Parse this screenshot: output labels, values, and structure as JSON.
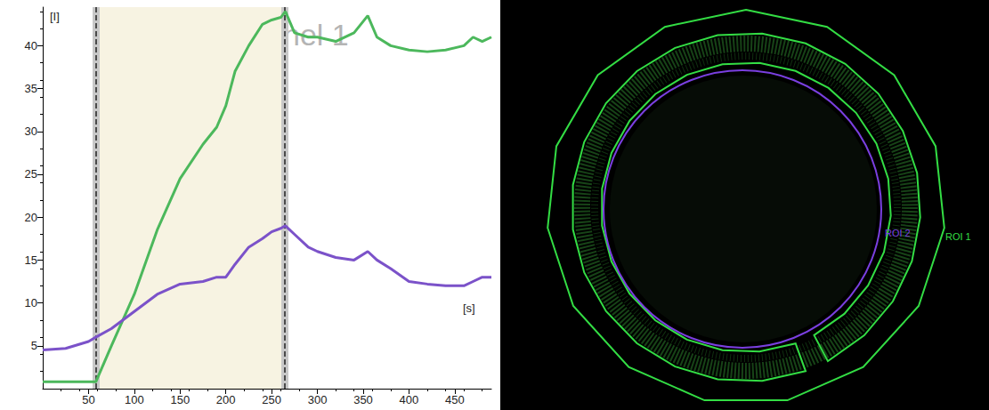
{
  "chart_data": {
    "type": "line",
    "y_label": "[I]",
    "x_label": "[s]",
    "annotations": [
      "nel 1"
    ],
    "x": [
      0,
      25,
      50,
      58,
      75,
      100,
      125,
      150,
      175,
      190,
      200,
      210,
      225,
      240,
      250,
      260,
      265,
      275,
      290,
      300,
      320,
      340,
      355,
      365,
      380,
      400,
      420,
      440,
      460,
      470,
      480,
      490
    ],
    "series": [
      {
        "color": "#4cb85c",
        "values": [
          0.8,
          0.8,
          0.8,
          0.8,
          5,
          11,
          18.5,
          24.5,
          28.5,
          30.5,
          33,
          37,
          40,
          42.5,
          43,
          43.3,
          44,
          41.5,
          41,
          41,
          40.5,
          41.5,
          43.5,
          41,
          40,
          39.5,
          39.3,
          39.5,
          40,
          41,
          40.5,
          41
        ]
      },
      {
        "color": "#7b52c9",
        "values": [
          4.5,
          4.7,
          5.5,
          6,
          7,
          9,
          11,
          12.2,
          12.5,
          13,
          13,
          14.5,
          16.5,
          17.5,
          18.3,
          18.7,
          19,
          18,
          16.5,
          16,
          15.3,
          15,
          16,
          15,
          14,
          12.5,
          12.2,
          12,
          12,
          12.5,
          13,
          13
        ]
      }
    ],
    "marked_interval": [
      58,
      264
    ],
    "xlim": [
      0,
      490
    ],
    "xticks": [
      50,
      100,
      150,
      200,
      250,
      300,
      350,
      400,
      450
    ],
    "ylim": [
      0,
      44.5
    ],
    "yticks": [
      5,
      10,
      15,
      20,
      25,
      30,
      35,
      40
    ],
    "grid": false
  },
  "image": {
    "background": "#000000",
    "rois": [
      {
        "label": "ROI 1",
        "color": "#33dd44"
      },
      {
        "label": "ROI 2",
        "color": "#7a3fe0"
      }
    ]
  }
}
